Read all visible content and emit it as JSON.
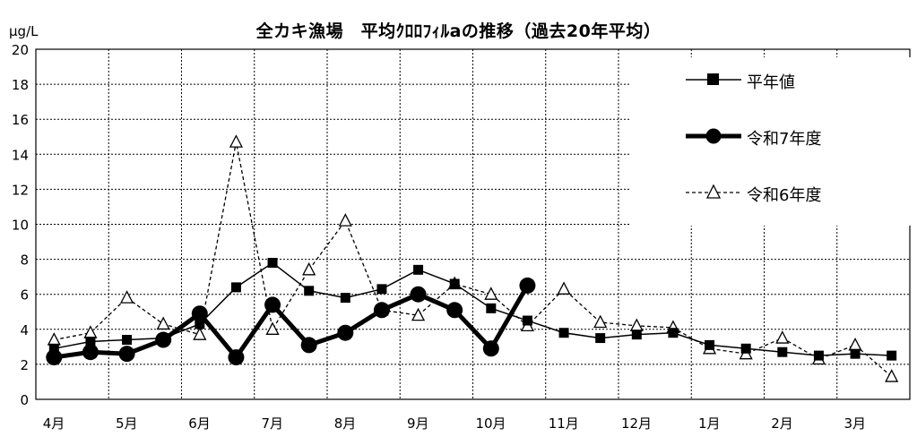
{
  "chart_data": {
    "type": "line",
    "title": "全カキ漁場　平均ｸﾛﾛﾌｨﾙaの推移（過去20年平均）",
    "ylabel": "μg/L",
    "xlabel": "",
    "ylim": [
      0,
      20
    ],
    "yticks": [
      "0",
      "2",
      "4",
      "6",
      "8",
      "10",
      "12",
      "14",
      "16",
      "18",
      "20"
    ],
    "month_labels": [
      "4月",
      "5月",
      "6月",
      "7月",
      "8月",
      "9月",
      "10月",
      "11月",
      "12月",
      "1月",
      "2月",
      "3月"
    ],
    "grid": true,
    "legend_position": "top-right",
    "series": [
      {
        "name": "平年値",
        "style": "thin solid line, filled square markers",
        "color": "#000000",
        "values": [
          2.9,
          3.3,
          3.4,
          3.5,
          4.3,
          6.4,
          7.8,
          6.2,
          5.8,
          6.3,
          7.4,
          6.6,
          5.2,
          4.5,
          3.8,
          3.5,
          3.7,
          3.8,
          3.1,
          2.9,
          2.7,
          2.5,
          2.6,
          2.5
        ]
      },
      {
        "name": "令和7年度",
        "style": "thick solid line, large filled circle markers",
        "color": "#000000",
        "values": [
          2.4,
          2.7,
          2.6,
          3.4,
          4.9,
          2.4,
          5.4,
          3.1,
          3.8,
          5.1,
          6.0,
          5.1,
          2.9,
          6.5,
          null,
          null,
          null,
          null,
          null,
          null,
          null,
          null,
          null,
          null
        ]
      },
      {
        "name": "令和6年度",
        "style": "dashed line, open triangle markers",
        "color": "#000000",
        "values": [
          3.4,
          3.8,
          5.8,
          4.3,
          3.7,
          14.7,
          4.0,
          7.4,
          10.2,
          5.1,
          4.8,
          6.6,
          6.0,
          4.2,
          6.3,
          4.4,
          4.2,
          4.1,
          2.9,
          2.6,
          3.5,
          2.3,
          3.1,
          1.3
        ]
      }
    ]
  }
}
